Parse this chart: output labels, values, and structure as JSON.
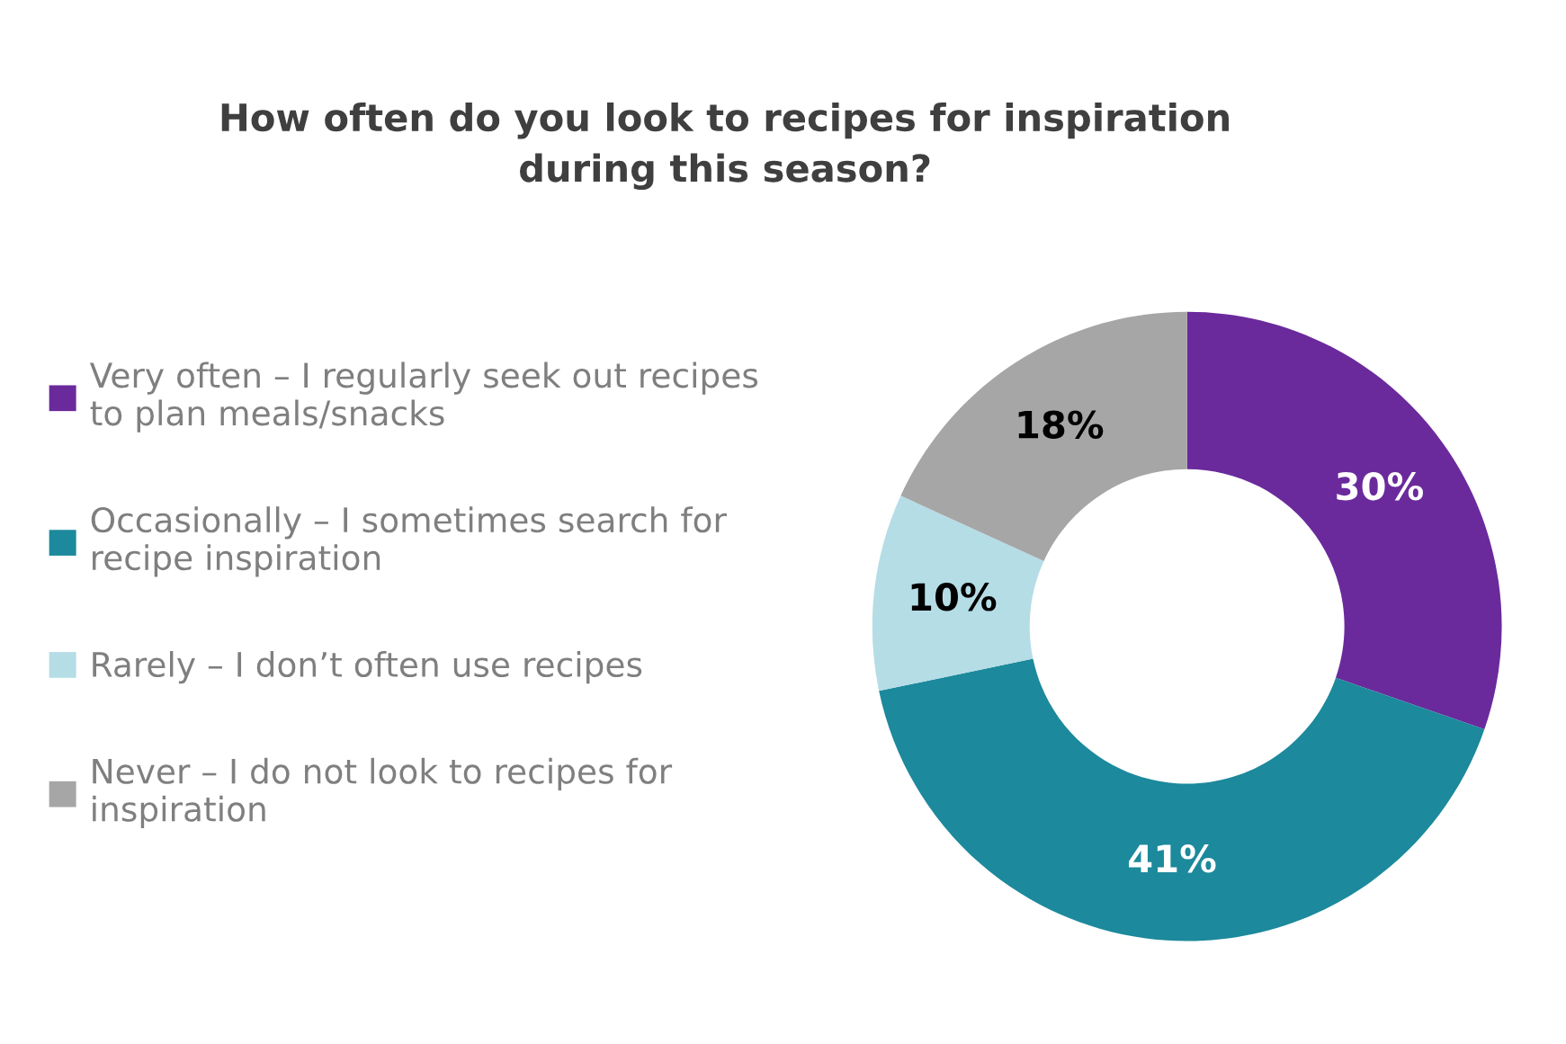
{
  "chart_data": {
    "type": "donut",
    "title": "How often do you look to recipes for inspiration\nduring this season?",
    "categories": [
      "Very often – I regularly seek out recipes\nto plan meals/snacks",
      "Occasionally – I sometimes search for\nrecipe inspiration",
      "Rarely – I don’t often use recipes",
      "Never – I do not look to recipes for\ninspiration"
    ],
    "values": [
      30,
      41,
      10,
      18
    ],
    "colors": [
      "#6a2a9c",
      "#1c899c",
      "#b5dde6",
      "#a6a6a6"
    ],
    "value_labels": [
      "30%",
      "41%",
      "10%",
      "18%"
    ],
    "legend": "left"
  }
}
